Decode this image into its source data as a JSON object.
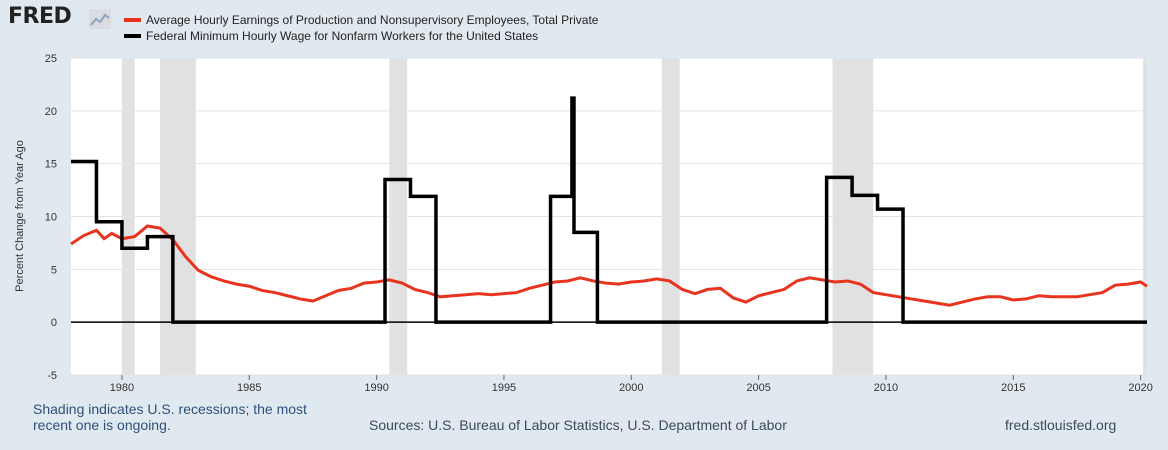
{
  "brand": {
    "name": "FRED"
  },
  "legend": [
    {
      "label": "Average Hourly Earnings of Production and Nonsupervisory Employees, Total Private",
      "color": "#e8331f"
    },
    {
      "label": "Federal Minimum Hourly Wage for Nonfarm Workers for the United States",
      "color": "#000000"
    }
  ],
  "footer": {
    "note": "Shading indicates U.S. recessions; the most recent one is ongoing.",
    "sources": "Sources: U.S. Bureau of Labor Statistics, U.S. Department of Labor",
    "site": "fred.stlouisfed.org"
  },
  "chart_data": {
    "type": "line",
    "title": "",
    "xlabel": "",
    "ylabel": "Percent Change from Year Ago",
    "xlim": [
      1978.0,
      2020.25
    ],
    "ylim": [
      -5,
      25
    ],
    "yticks": [
      -5,
      0,
      5,
      10,
      15,
      20,
      25
    ],
    "xticks": [
      1980,
      1985,
      1990,
      1995,
      2000,
      2005,
      2010,
      2015,
      2020
    ],
    "grid": true,
    "recessions": [
      [
        1980.0,
        1980.5
      ],
      [
        1981.5,
        1982.9
      ],
      [
        1990.5,
        1991.2
      ],
      [
        2001.2,
        2001.9
      ],
      [
        2007.9,
        2009.5
      ],
      [
        2020.1,
        2020.25
      ]
    ],
    "series": [
      {
        "name": "Average Hourly Earnings of Production and Nonsupervisory Employees, Total Private",
        "color": "#e8331f",
        "x": [
          1978.0,
          1978.5,
          1979.0,
          1979.3,
          1979.6,
          1980.0,
          1980.5,
          1981.0,
          1981.5,
          1982.0,
          1982.5,
          1983.0,
          1983.5,
          1984.0,
          1984.5,
          1985.0,
          1985.5,
          1986.0,
          1986.5,
          1987.0,
          1987.5,
          1988.0,
          1988.5,
          1989.0,
          1989.5,
          1990.0,
          1990.5,
          1991.0,
          1991.5,
          1992.0,
          1992.5,
          1993.0,
          1993.5,
          1994.0,
          1994.5,
          1995.0,
          1995.5,
          1996.0,
          1996.5,
          1997.0,
          1997.5,
          1998.0,
          1998.5,
          1999.0,
          1999.5,
          2000.0,
          2000.5,
          2001.0,
          2001.5,
          2002.0,
          2002.5,
          2003.0,
          2003.5,
          2004.0,
          2004.5,
          2005.0,
          2005.5,
          2006.0,
          2006.5,
          2007.0,
          2007.5,
          2008.0,
          2008.5,
          2009.0,
          2009.5,
          2010.0,
          2010.5,
          2011.0,
          2011.5,
          2012.0,
          2012.5,
          2013.0,
          2013.5,
          2014.0,
          2014.5,
          2015.0,
          2015.5,
          2016.0,
          2016.5,
          2017.0,
          2017.5,
          2018.0,
          2018.5,
          2019.0,
          2019.5,
          2020.0,
          2020.25
        ],
        "values": [
          7.4,
          8.2,
          8.7,
          7.9,
          8.4,
          7.9,
          8.1,
          9.1,
          8.9,
          7.8,
          6.2,
          4.9,
          4.3,
          3.9,
          3.6,
          3.4,
          3.0,
          2.8,
          2.5,
          2.2,
          2.0,
          2.5,
          3.0,
          3.2,
          3.7,
          3.8,
          4.0,
          3.7,
          3.1,
          2.8,
          2.4,
          2.5,
          2.6,
          2.7,
          2.6,
          2.7,
          2.8,
          3.2,
          3.5,
          3.8,
          3.9,
          4.2,
          3.9,
          3.7,
          3.6,
          3.8,
          3.9,
          4.1,
          3.9,
          3.1,
          2.7,
          3.1,
          3.2,
          2.3,
          1.9,
          2.5,
          2.8,
          3.1,
          3.9,
          4.2,
          4.0,
          3.8,
          3.9,
          3.6,
          2.8,
          2.6,
          2.4,
          2.2,
          2.0,
          1.8,
          1.6,
          1.9,
          2.2,
          2.4,
          2.4,
          2.1,
          2.2,
          2.5,
          2.4,
          2.4,
          2.4,
          2.6,
          2.8,
          3.5,
          3.6,
          3.8,
          3.4
        ]
      },
      {
        "name": "Federal Minimum Hourly Wage for Nonfarm Workers for the United States",
        "color": "#000000",
        "step": true,
        "x": [
          1978.0,
          1979.0,
          1980.0,
          1981.0,
          1982.0,
          1990.33,
          1991.33,
          1992.33,
          1996.83,
          1997.67,
          1997.75,
          1998.67,
          2007.67,
          2008.67,
          2009.67,
          2010.67,
          2020.25
        ],
        "values": [
          15.2,
          9.5,
          7.0,
          8.1,
          0,
          13.5,
          11.9,
          0,
          11.9,
          21.2,
          8.5,
          0,
          13.7,
          12.0,
          10.7,
          0,
          0
        ]
      }
    ]
  }
}
